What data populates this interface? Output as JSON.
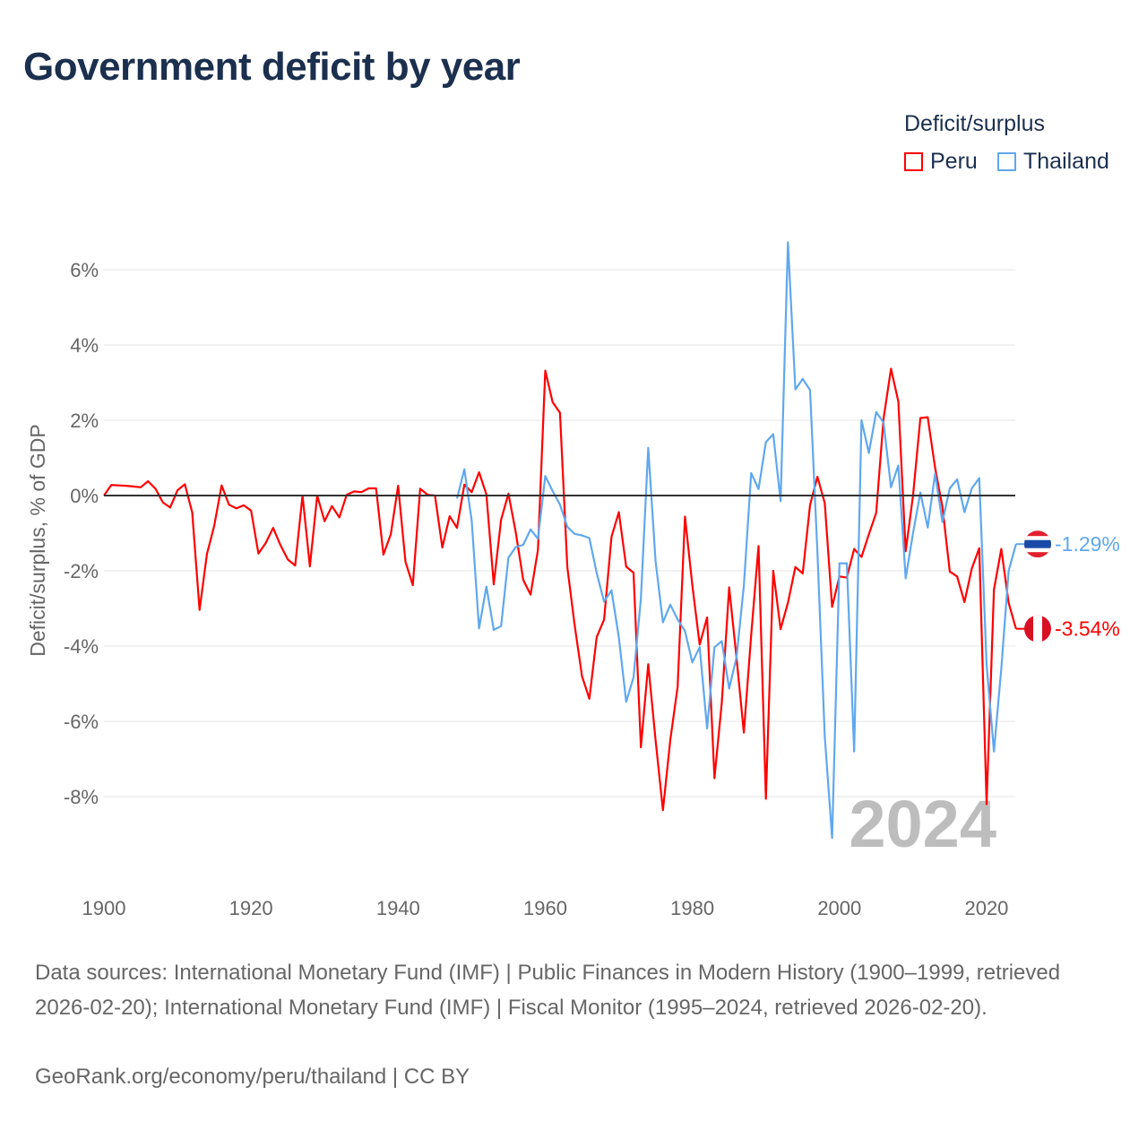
{
  "title": "Government deficit by year",
  "legend": {
    "title": "Deficit/surplus",
    "entries": [
      {
        "name": "Peru",
        "color": "#ff0000"
      },
      {
        "name": "Thailand",
        "color": "#5fa8ee"
      }
    ]
  },
  "watermark_year": "2024",
  "footer": {
    "sources": "Data sources: International Monetary Fund (IMF) | Public Finances in Modern History (1900–1999, retrieved 2026-02-20); International Monetary Fund (IMF) | Fiscal Monitor (1995–2024, retrieved 2026-02-20).",
    "credit": "GeoRank.org/economy/peru/thailand | CC BY"
  },
  "chart_data": {
    "type": "line",
    "title": "Government deficit by year",
    "xlabel": "",
    "ylabel": "Deficit/surplus, % of GDP",
    "xlim": [
      1900,
      2024
    ],
    "ylim": [
      -9.5,
      7
    ],
    "xticks": [
      1900,
      1920,
      1940,
      1960,
      1980,
      2000,
      2020
    ],
    "xtick_labels": [
      "1900",
      "1920",
      "1940",
      "1960",
      "1980",
      "2000",
      "2020"
    ],
    "yticks": [
      6,
      4,
      2,
      0,
      -2,
      -4,
      -6,
      -8
    ],
    "ytick_labels": [
      "6%",
      "4%",
      "2%",
      "0%",
      "-2%",
      "-4%",
      "-6%",
      "-8%"
    ],
    "grid": true,
    "legend_position": "top-right",
    "series": [
      {
        "name": "Peru",
        "color": "#ff0000",
        "start_year": 1900,
        "end_label": "-3.54%",
        "values": [
          0,
          0.28,
          0.27,
          0.26,
          0.24,
          0.22,
          0.38,
          0.18,
          -0.18,
          -0.32,
          0.14,
          0.3,
          -0.45,
          -3.04,
          -1.56,
          -0.8,
          0.27,
          -0.24,
          -0.34,
          -0.26,
          -0.4,
          -1.54,
          -1.26,
          -0.86,
          -1.32,
          -1.7,
          -1.86,
          0,
          -1.88,
          0,
          -0.68,
          -0.28,
          -0.58,
          0.02,
          0.11,
          0.09,
          0.19,
          0.19,
          -1.57,
          -1.03,
          0.26,
          -1.76,
          -2.38,
          0.18,
          0.02,
          0,
          -1.38,
          -0.55,
          -0.86,
          0.29,
          0.09,
          0.62,
          0.03,
          -2.36,
          -0.64,
          0.05,
          -0.98,
          -2.24,
          -2.63,
          -1.45,
          3.32,
          2.48,
          2.2,
          -1.9,
          -3.45,
          -4.8,
          -5.4,
          -3.76,
          -3.3,
          -1.1,
          -0.44,
          -1.89,
          -2.05,
          -6.69,
          -4.48,
          -6.5,
          -8.36,
          -6.5,
          -5.08,
          -0.56,
          -2.38,
          -3.96,
          -3.24,
          -7.51,
          -5.5,
          -2.44,
          -4.3,
          -6.3,
          -3.7,
          -1.34,
          -8.06,
          -2.0,
          -3.55,
          -2.85,
          -1.9,
          -2.07,
          -0.25,
          0.5,
          -0.2,
          -2.96,
          -2.15,
          -2.18,
          -1.42,
          -1.63,
          -1.03,
          -0.46,
          2.04,
          3.37,
          2.5,
          -1.48,
          0,
          2.06,
          2.08,
          0.74,
          -0.3,
          -2.02,
          -2.15,
          -2.83,
          -1.94,
          -1.4,
          -8.2,
          -2.5,
          -1.42,
          -2.85,
          -3.54
        ]
      },
      {
        "name": "Thailand",
        "color": "#5fa8ee",
        "start_year": 1948,
        "end_label": "-1.29%",
        "values": [
          -0.08,
          0.7,
          -0.67,
          -3.53,
          -2.42,
          -3.57,
          -3.47,
          -1.65,
          -1.37,
          -1.31,
          -0.9,
          -1.15,
          0.52,
          0.12,
          -0.24,
          -0.83,
          -1.02,
          -1.06,
          -1.13,
          -2.06,
          -2.82,
          -2.52,
          -3.77,
          -5.48,
          -4.83,
          -2.74,
          1.27,
          -1.75,
          -3.37,
          -2.9,
          -3.29,
          -3.6,
          -4.43,
          -4.03,
          -6.19,
          -4.03,
          -3.87,
          -5.13,
          -4.3,
          -2.4,
          0.6,
          0.17,
          1.42,
          1.63,
          -0.15,
          6.73,
          2.82,
          3.1,
          2.8,
          -1.5,
          -6.4,
          -9.1,
          -1.8,
          -1.8,
          -6.8,
          2.0,
          1.13,
          2.22,
          1.94,
          0.22,
          0.8,
          -2.2,
          -1.0,
          0.08,
          -0.85,
          0.58,
          -0.7,
          0.19,
          0.43,
          -0.44,
          0.19,
          0.46,
          -4.5,
          -6.8,
          -4.6,
          -2.0,
          -1.29
        ]
      }
    ]
  }
}
